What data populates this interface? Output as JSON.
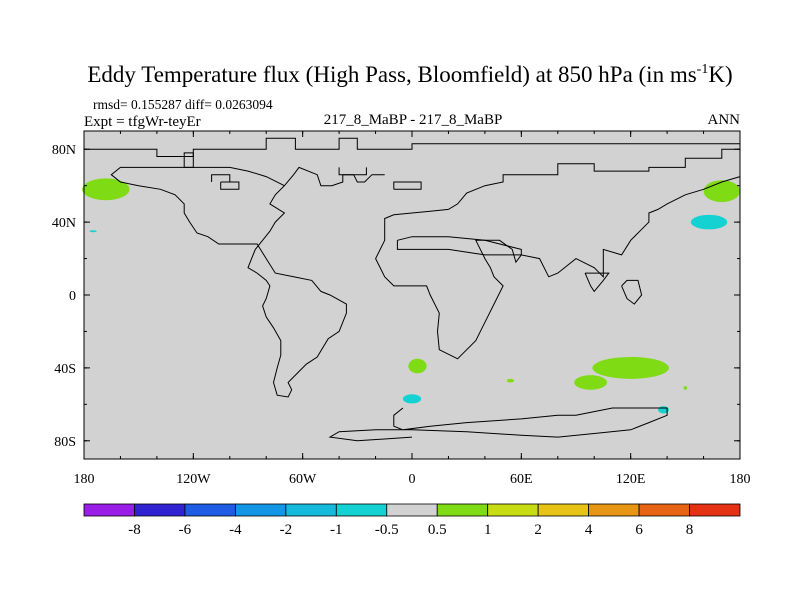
{
  "chart_data": {
    "type": "heatmap",
    "title_main": "Eddy Temperature flux (High Pass, Bloomfield) at 850 hPa (in ms",
    "title_sup": "-1",
    "title_end": "K)",
    "stats_line": "rmsd= 0.155287 diff= 0.0263094",
    "expt_label": "Expt = tfgWr-teyEr",
    "center_label": "217_8_MaBP - 217_8_MaBP",
    "season_label": "ANN",
    "x_ticks": [
      "180",
      "120W",
      "60W",
      "0",
      "60E",
      "120E",
      "180"
    ],
    "x_tick_values": [
      -180,
      -120,
      -60,
      0,
      60,
      120,
      180
    ],
    "y_ticks": [
      "80N",
      "40N",
      "0",
      "40S",
      "80S"
    ],
    "y_tick_values": [
      80,
      40,
      0,
      -40,
      -80
    ],
    "xlim": [
      -180,
      180
    ],
    "ylim": [
      -90,
      90
    ],
    "background_color": "#d2d2d2",
    "colorbar": {
      "colors": [
        "#9b1ee6",
        "#3223d2",
        "#1f5ce4",
        "#1496e6",
        "#14b9dc",
        "#14d2d2",
        "#d2d2d2",
        "#7fdc14",
        "#c8dc14",
        "#e6c314",
        "#e69614",
        "#e66414",
        "#e63214"
      ],
      "labels": [
        "-8",
        "-6",
        "-4",
        "-2",
        "-1",
        "-0.5",
        "0.5",
        "1",
        "2",
        "4",
        "6",
        "8"
      ]
    },
    "blobs": [
      {
        "lon": -168,
        "lat": 58,
        "rlon": 13,
        "rlat": 6,
        "color": "#7fdc14"
      },
      {
        "lon": 170,
        "lat": 57,
        "rlon": 10,
        "rlat": 6,
        "color": "#7fdc14"
      },
      {
        "lon": 163,
        "lat": 40,
        "rlon": 10,
        "rlat": 4,
        "color": "#14d2d2"
      },
      {
        "lon": 120,
        "lat": -40,
        "rlon": 21,
        "rlat": 6,
        "color": "#7fdc14"
      },
      {
        "lon": 98,
        "lat": -48,
        "rlon": 9,
        "rlat": 4,
        "color": "#7fdc14"
      },
      {
        "lon": 3,
        "lat": -39,
        "rlon": 5,
        "rlat": 4,
        "color": "#7fdc14"
      },
      {
        "lon": 0,
        "lat": -57,
        "rlon": 5,
        "rlat": 2.5,
        "color": "#14d2d2"
      },
      {
        "lon": 138,
        "lat": -63,
        "rlon": 3,
        "rlat": 2,
        "color": "#14d2d2"
      },
      {
        "lon": 54,
        "lat": -47,
        "rlon": 2,
        "rlat": 1,
        "color": "#7fdc14"
      },
      {
        "lon": 150,
        "lat": -51,
        "rlon": 1,
        "rlat": 1,
        "color": "#7fdc14"
      },
      {
        "lon": -175,
        "lat": 35,
        "rlon": 2,
        "rlat": 0.5,
        "color": "#14d2d2"
      }
    ],
    "coastlines": [
      [
        [
          -180,
          83
        ],
        [
          -180,
          80
        ],
        [
          -140,
          80
        ],
        [
          -140,
          76
        ],
        [
          -120,
          76
        ],
        [
          -120,
          80
        ],
        [
          -80,
          80
        ],
        [
          -80,
          86
        ],
        [
          -64,
          86
        ],
        [
          -64,
          80
        ],
        [
          -40,
          80
        ],
        [
          -40,
          86
        ],
        [
          -30,
          86
        ],
        [
          -30,
          80
        ],
        [
          0,
          80
        ],
        [
          0,
          83
        ],
        [
          180,
          83
        ],
        [
          180,
          80
        ],
        [
          170,
          80
        ],
        [
          170,
          75
        ],
        [
          150,
          75
        ],
        [
          150,
          70
        ],
        [
          130,
          70
        ],
        [
          130,
          68
        ],
        [
          100,
          68
        ],
        [
          100,
          72
        ],
        [
          80,
          72
        ],
        [
          80,
          66
        ],
        [
          50,
          66
        ],
        [
          50,
          62
        ],
        [
          40,
          60
        ],
        [
          30,
          56
        ],
        [
          25,
          50
        ],
        [
          20,
          47
        ],
        [
          10,
          46
        ],
        [
          0,
          45
        ],
        [
          -10,
          44
        ],
        [
          -15,
          42
        ],
        [
          -15,
          30
        ],
        [
          -20,
          20
        ],
        [
          -15,
          10
        ],
        [
          -10,
          5
        ],
        [
          0,
          5
        ],
        [
          8,
          5
        ],
        [
          10,
          0
        ],
        [
          15,
          -10
        ],
        [
          14,
          -20
        ],
        [
          15,
          -30
        ],
        [
          25,
          -35
        ],
        [
          35,
          -25
        ],
        [
          40,
          -15
        ],
        [
          45,
          -5
        ],
        [
          50,
          5
        ],
        [
          45,
          10
        ],
        [
          43,
          15
        ],
        [
          40,
          20
        ],
        [
          35,
          30
        ],
        [
          48,
          30
        ],
        [
          55,
          25
        ],
        [
          57,
          18
        ],
        [
          60,
          22
        ],
        [
          70,
          20
        ],
        [
          75,
          10
        ],
        [
          80,
          12
        ],
        [
          90,
          20
        ],
        [
          100,
          15
        ],
        [
          105,
          10
        ],
        [
          105,
          25
        ],
        [
          115,
          22
        ],
        [
          120,
          30
        ],
        [
          125,
          35
        ],
        [
          130,
          40
        ],
        [
          130,
          45
        ],
        [
          135,
          47
        ],
        [
          140,
          50
        ],
        [
          150,
          55
        ],
        [
          160,
          58
        ],
        [
          170,
          62
        ],
        [
          180,
          65
        ]
      ],
      [
        [
          -15,
          66
        ],
        [
          -22,
          66
        ],
        [
          -26,
          62
        ],
        [
          -30,
          62
        ],
        [
          -32,
          66
        ],
        [
          -38,
          66
        ],
        [
          -38,
          62
        ],
        [
          -44,
          60
        ],
        [
          -50,
          60
        ],
        [
          -52,
          66
        ],
        [
          -62,
          70
        ],
        [
          -65,
          66
        ],
        [
          -70,
          60
        ],
        [
          -75,
          55
        ],
        [
          -78,
          50
        ],
        [
          -70,
          45
        ],
        [
          -75,
          40
        ],
        [
          -78,
          35
        ],
        [
          -82,
          30
        ],
        [
          -86,
          25
        ],
        [
          -88,
          20
        ],
        [
          -90,
          15
        ],
        [
          -85,
          12
        ],
        [
          -80,
          8
        ],
        [
          -78,
          5
        ],
        [
          -80,
          -2
        ],
        [
          -82,
          -6
        ],
        [
          -80,
          -12
        ],
        [
          -76,
          -18
        ],
        [
          -72,
          -25
        ],
        [
          -72,
          -33
        ],
        [
          -74,
          -40
        ],
        [
          -76,
          -48
        ],
        [
          -74,
          -55
        ],
        [
          -68,
          -56
        ],
        [
          -66,
          -52
        ],
        [
          -68,
          -48
        ],
        [
          -62,
          -42
        ],
        [
          -58,
          -38
        ],
        [
          -52,
          -34
        ],
        [
          -46,
          -24
        ],
        [
          -40,
          -20
        ],
        [
          -36,
          -10
        ],
        [
          -36,
          -5
        ],
        [
          -45,
          0
        ],
        [
          -50,
          2
        ],
        [
          -55,
          8
        ],
        [
          -65,
          10
        ],
        [
          -75,
          12
        ],
        [
          -80,
          20
        ],
        [
          -85,
          28
        ],
        [
          -96,
          28
        ],
        [
          -106,
          28
        ],
        [
          -112,
          32
        ],
        [
          -118,
          34
        ],
        [
          -122,
          40
        ],
        [
          -125,
          45
        ],
        [
          -125,
          50
        ],
        [
          -130,
          55
        ],
        [
          -138,
          58
        ],
        [
          -150,
          60
        ],
        [
          -160,
          62
        ],
        [
          -165,
          66
        ],
        [
          -160,
          70
        ],
        [
          -140,
          70
        ],
        [
          -120,
          70
        ],
        [
          -100,
          70
        ],
        [
          -90,
          68
        ],
        [
          -80,
          65
        ],
        [
          -70,
          60
        ]
      ],
      [
        [
          -105,
          62
        ],
        [
          -105,
          58
        ],
        [
          -95,
          58
        ],
        [
          -95,
          62
        ],
        [
          -105,
          62
        ]
      ],
      [
        [
          -125,
          70
        ],
        [
          -125,
          78
        ],
        [
          -120,
          78
        ],
        [
          -120,
          70
        ],
        [
          -125,
          70
        ]
      ],
      [
        [
          -110,
          62
        ],
        [
          -110,
          66
        ],
        [
          -100,
          66
        ],
        [
          -100,
          62
        ]
      ],
      [
        [
          -40,
          70
        ],
        [
          -40,
          66
        ],
        [
          -25,
          66
        ],
        [
          -25,
          70
        ]
      ],
      [
        [
          -10,
          58
        ],
        [
          -10,
          62
        ],
        [
          5,
          62
        ],
        [
          5,
          58
        ],
        [
          -10,
          58
        ]
      ],
      [
        [
          -8,
          30
        ],
        [
          -8,
          25
        ],
        [
          20,
          25
        ],
        [
          40,
          22
        ],
        [
          60,
          22
        ],
        [
          60,
          25
        ],
        [
          40,
          30
        ],
        [
          20,
          32
        ],
        [
          0,
          32
        ],
        [
          -8,
          30
        ]
      ],
      [
        [
          95,
          12
        ],
        [
          98,
          5
        ],
        [
          100,
          2
        ],
        [
          105,
          8
        ],
        [
          108,
          12
        ],
        [
          102,
          12
        ],
        [
          95,
          12
        ]
      ],
      [
        [
          115,
          5
        ],
        [
          118,
          -2
        ],
        [
          122,
          -5
        ],
        [
          126,
          0
        ],
        [
          124,
          8
        ],
        [
          118,
          8
        ],
        [
          115,
          5
        ]
      ],
      [
        [
          -5,
          -62
        ],
        [
          -10,
          -66
        ],
        [
          -10,
          -72
        ],
        [
          -5,
          -74
        ],
        [
          10,
          -72
        ],
        [
          30,
          -70
        ],
        [
          60,
          -68
        ],
        [
          80,
          -66
        ],
        [
          90,
          -66
        ],
        [
          100,
          -64
        ],
        [
          110,
          -62
        ],
        [
          130,
          -62
        ],
        [
          140,
          -62
        ],
        [
          140,
          -66
        ],
        [
          130,
          -70
        ],
        [
          120,
          -74
        ],
        [
          100,
          -76
        ],
        [
          80,
          -78
        ],
        [
          60,
          -77
        ],
        [
          30,
          -75
        ],
        [
          0,
          -74
        ],
        [
          -20,
          -74
        ],
        [
          -40,
          -75
        ],
        [
          -45,
          -78
        ],
        [
          -30,
          -80
        ],
        [
          0,
          -78
        ]
      ]
    ]
  }
}
